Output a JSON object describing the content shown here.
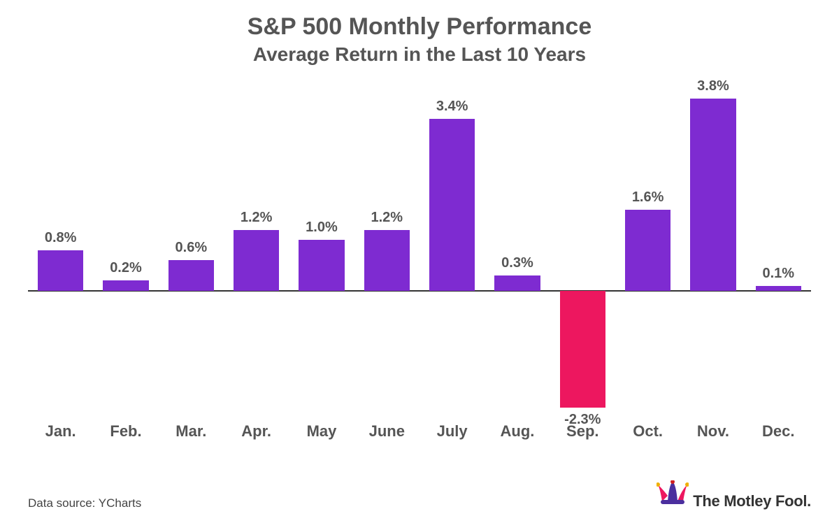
{
  "title": "S&P 500 Monthly Performance",
  "subtitle": "Average Return in the Last 10 Years",
  "source_text": "Data source: YCharts",
  "brand_text": "The Motley Fool.",
  "chart": {
    "type": "bar",
    "categories": [
      "Jan.",
      "Feb.",
      "Mar.",
      "Apr.",
      "May",
      "June",
      "July",
      "Aug.",
      "Sep.",
      "Oct.",
      "Nov.",
      "Dec."
    ],
    "values": [
      0.8,
      0.2,
      0.6,
      1.2,
      1.0,
      1.2,
      3.4,
      0.3,
      -2.3,
      1.6,
      3.8,
      0.1
    ],
    "value_labels": [
      "0.8%",
      "0.2%",
      "0.6%",
      "1.2%",
      "1.0%",
      "1.2%",
      "3.4%",
      "0.3%",
      "-2.3%",
      "1.6%",
      "3.8%",
      "0.1%"
    ],
    "positive_color": "#7e2bd1",
    "negative_color": "#ed175f",
    "axis_color": "#333333",
    "text_color": "#555555",
    "background_color": "#ffffff",
    "baseline_ratio": 0.55,
    "ylim": [
      -3.0,
      4.0
    ],
    "label_fontsize": 20,
    "category_fontsize": 22,
    "title_fontsize": 34,
    "subtitle_fontsize": 28,
    "bar_width_ratio": 0.7,
    "category_label_row": 0.9
  },
  "brand_colors": {
    "hat_pink": "#ed175f",
    "hat_purple": "#4b2f9e",
    "hat_gold": "#f0b000",
    "hat_red": "#d02020"
  }
}
